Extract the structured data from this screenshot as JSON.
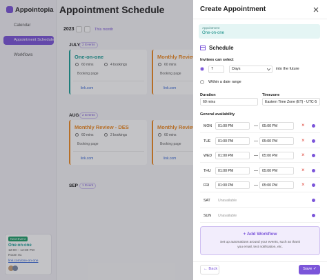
{
  "sidebar": {
    "brand": "Appointopia",
    "nav": [
      "Calendar",
      "Appointment Schedule",
      "Workflows"
    ],
    "next_event": {
      "badge": "Next Event",
      "title": "One-on-one",
      "time": "12:00 – 12:30 PM",
      "room": "Room 01",
      "link": "link.com/one-on-one"
    }
  },
  "main": {
    "title": "Appointment Schedule",
    "year": "2023",
    "period": "This month",
    "months": [
      {
        "name": "JULY",
        "count": "2 Events",
        "cards": [
          {
            "title": "One-on-one",
            "color": "#1a9e96",
            "duration": "60 mins",
            "bookings": "4 bookings",
            "booking_page": "Booking page",
            "link": "link.com"
          },
          {
            "title": "Monthly Review",
            "color": "#ee8a22",
            "duration": "60 mins",
            "booking_page": "Booking page",
            "link": "link.com"
          }
        ]
      },
      {
        "name": "AUG",
        "count": "2 Events",
        "cards": [
          {
            "title": "Monthly Review - DES",
            "color": "#ee8a22",
            "duration": "60 mins",
            "bookings": "2 bookings",
            "booking_page": "Booking page",
            "link": "link.com"
          },
          {
            "title": "Monthly Review",
            "color": "#ee8a22",
            "duration": "60 mins",
            "booking_page": "Booking page",
            "link": "link.com"
          }
        ]
      },
      {
        "name": "SEP",
        "count": "1 Event",
        "cards": []
      }
    ]
  },
  "panel": {
    "title": "Create Appointment",
    "appointment": {
      "label": "Appointment",
      "value": "One-on-one"
    },
    "section": "Schedule",
    "invitees": {
      "label": "Invitees can select",
      "count": 7,
      "unit": "Days",
      "suffix": "into the future",
      "range": "Within a date range"
    },
    "duration": {
      "label": "Duration",
      "value": "60 mins"
    },
    "timezone": {
      "label": "Timezone",
      "value": "Eastern Time Zone (ET) - UTC-5"
    },
    "availability": {
      "label": "General availability",
      "days": [
        {
          "day": "MON",
          "start": "01:00 PM",
          "end": "05:00 PM"
        },
        {
          "day": "TUE",
          "start": "01:00 PM",
          "end": "05:00 PM"
        },
        {
          "day": "WED",
          "start": "01:00 PM",
          "end": "05:00 PM"
        },
        {
          "day": "THU",
          "start": "01:00 PM",
          "end": "05:00 PM"
        },
        {
          "day": "FRI",
          "start": "01:00 PM",
          "end": "05:00 PM"
        },
        {
          "day": "SAT",
          "status": "Unavailable"
        },
        {
          "day": "SUN",
          "status": "Unavailable"
        }
      ]
    },
    "workflow": {
      "title": "Add Workflow",
      "description": "Set up automations around your events, such as thank you email, text notification, etc."
    },
    "back": "Back",
    "save": "Save"
  }
}
